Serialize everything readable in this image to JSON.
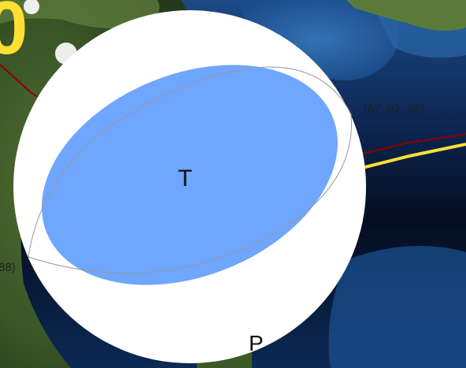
{
  "map": {
    "overlay_number": "0",
    "nodal_plane_label_1": "(67, 82, 92)",
    "nodal_plane_label_2": "88)",
    "tension_axis_label": "T",
    "pressure_axis_label": "P",
    "colors": {
      "compressional_fill": "#6fa6ff",
      "beachball_background": "#ffffff",
      "plate_boundary": "#8b0000",
      "highlight_line": "#ffe033",
      "overlay_text": "#ffe033",
      "land": "#3d5a2a",
      "ocean_deep": "#07132a",
      "ocean_shallow": "#1e4f8c"
    }
  }
}
